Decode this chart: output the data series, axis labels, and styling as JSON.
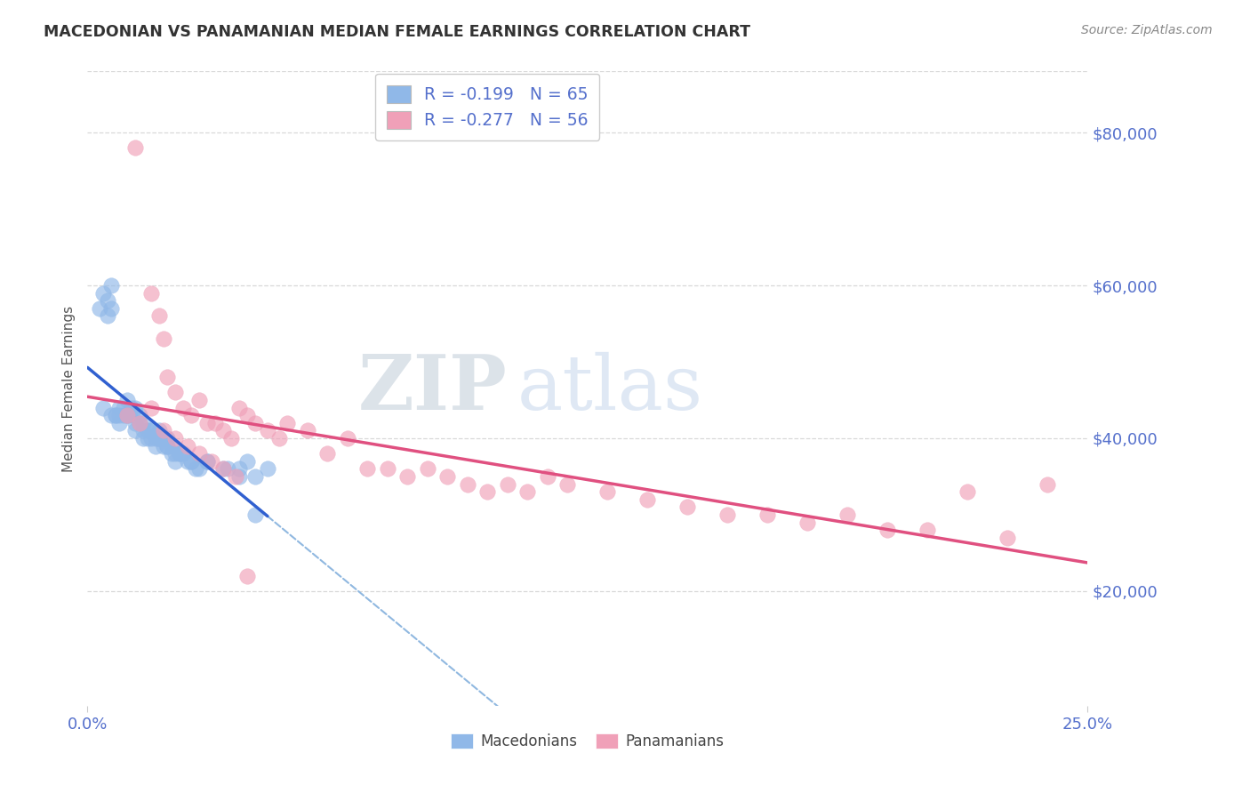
{
  "title": "MACEDONIAN VS PANAMANIAN MEDIAN FEMALE EARNINGS CORRELATION CHART",
  "source": "Source: ZipAtlas.com",
  "ylabel": "Median Female Earnings",
  "yticks": [
    20000,
    40000,
    60000,
    80000
  ],
  "ytick_labels": [
    "$20,000",
    "$40,000",
    "$60,000",
    "$80,000"
  ],
  "xlim": [
    0.0,
    0.25
  ],
  "ylim": [
    5000,
    88000
  ],
  "legend_label_1": "R = -0.199   N = 65",
  "legend_label_2": "R = -0.277   N = 56",
  "legend_bottom": [
    "Macedonians",
    "Panamanians"
  ],
  "macedonian_color": "#90b8e8",
  "panamanian_color": "#f0a0b8",
  "trend_mac_color": "#3060d0",
  "trend_pan_color": "#e05080",
  "dashed_line_color": "#90b8e0",
  "background_color": "#ffffff",
  "grid_color": "#d8d8d8",
  "axis_label_color": "#5570cc",
  "title_color": "#333333",
  "source_color": "#888888",
  "watermark_zip_color": "#c8d8e8",
  "watermark_atlas_color": "#b8d0f0",
  "mac_x": [
    0.003,
    0.004,
    0.005,
    0.005,
    0.006,
    0.006,
    0.007,
    0.007,
    0.008,
    0.008,
    0.009,
    0.009,
    0.01,
    0.01,
    0.011,
    0.011,
    0.012,
    0.012,
    0.013,
    0.013,
    0.014,
    0.014,
    0.015,
    0.015,
    0.016,
    0.016,
    0.017,
    0.017,
    0.018,
    0.018,
    0.019,
    0.019,
    0.02,
    0.02,
    0.021,
    0.021,
    0.022,
    0.022,
    0.023,
    0.024,
    0.025,
    0.026,
    0.027,
    0.028,
    0.03,
    0.035,
    0.038,
    0.04,
    0.042,
    0.045,
    0.004,
    0.006,
    0.008,
    0.01,
    0.012,
    0.014,
    0.016,
    0.018,
    0.02,
    0.023,
    0.026,
    0.03,
    0.034,
    0.038,
    0.042
  ],
  "mac_y": [
    57000,
    59000,
    58000,
    56000,
    60000,
    57000,
    43000,
    43000,
    44000,
    43000,
    44000,
    43000,
    45000,
    43000,
    44000,
    43000,
    42000,
    44000,
    43000,
    42000,
    41000,
    42000,
    41000,
    40000,
    41000,
    40000,
    40000,
    39000,
    41000,
    40000,
    40000,
    39000,
    40000,
    39000,
    38000,
    39000,
    38000,
    37000,
    38000,
    38000,
    37000,
    37000,
    36000,
    36000,
    37000,
    36000,
    35000,
    37000,
    35000,
    36000,
    44000,
    43000,
    42000,
    43000,
    41000,
    40000,
    41000,
    40000,
    39000,
    38000,
    37000,
    37000,
    36000,
    36000,
    30000
  ],
  "pan_x": [
    0.012,
    0.016,
    0.018,
    0.019,
    0.02,
    0.022,
    0.024,
    0.026,
    0.028,
    0.03,
    0.032,
    0.034,
    0.036,
    0.038,
    0.04,
    0.042,
    0.045,
    0.048,
    0.05,
    0.055,
    0.06,
    0.065,
    0.07,
    0.075,
    0.08,
    0.085,
    0.09,
    0.095,
    0.1,
    0.105,
    0.11,
    0.115,
    0.12,
    0.13,
    0.14,
    0.15,
    0.16,
    0.17,
    0.18,
    0.19,
    0.2,
    0.21,
    0.22,
    0.23,
    0.24,
    0.01,
    0.013,
    0.016,
    0.019,
    0.022,
    0.025,
    0.028,
    0.031,
    0.034,
    0.037,
    0.04
  ],
  "pan_y": [
    78000,
    59000,
    56000,
    53000,
    48000,
    46000,
    44000,
    43000,
    45000,
    42000,
    42000,
    41000,
    40000,
    44000,
    43000,
    42000,
    41000,
    40000,
    42000,
    41000,
    38000,
    40000,
    36000,
    36000,
    35000,
    36000,
    35000,
    34000,
    33000,
    34000,
    33000,
    35000,
    34000,
    33000,
    32000,
    31000,
    30000,
    30000,
    29000,
    30000,
    28000,
    28000,
    33000,
    27000,
    34000,
    43000,
    42000,
    44000,
    41000,
    40000,
    39000,
    38000,
    37000,
    36000,
    35000,
    22000
  ]
}
